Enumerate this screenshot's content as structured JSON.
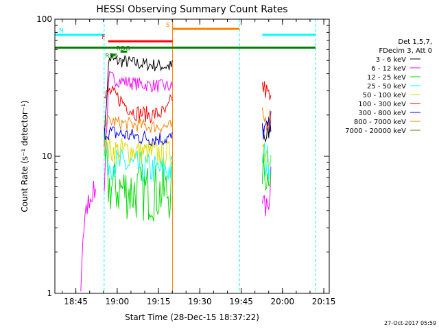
{
  "chart_data": {
    "type": "line",
    "title": "HESSI Observing Summary Count Rates",
    "xlabel": "Start Time (28-Dec-15 18:37:22)",
    "ylabel": "Count Rate (s⁻¹ detector⁻¹)",
    "ylim": [
      1,
      100
    ],
    "yscale": "log",
    "xlim": [
      18.623,
      20.283
    ],
    "x_ticks": [
      "18:45",
      "19:00",
      "19:15",
      "19:30",
      "19:45",
      "20:00",
      "20:15"
    ],
    "y_ticks": [
      "1",
      "10",
      "100"
    ],
    "legend": {
      "placement": "right",
      "header": [
        "Det 1,5,7,",
        "FDecim 3, Att 0"
      ],
      "entries": [
        {
          "label": "3 - 6 keV",
          "color": "#000000"
        },
        {
          "label": "6 - 12 keV",
          "color": "#ff00ff"
        },
        {
          "label": "12 - 25 keV",
          "color": "#00dd00"
        },
        {
          "label": "25 - 50 keV",
          "color": "#00ffff"
        },
        {
          "label": "50 - 100 keV",
          "color": "#dddd00"
        },
        {
          "label": "100 - 300 keV",
          "color": "#ff0000"
        },
        {
          "label": "300 - 800 keV",
          "color": "#0000ff"
        },
        {
          "label": "800 - 7000 keV",
          "color": "#ff8000"
        },
        {
          "label": "7000 - 20000 keV",
          "color": "#8b6914"
        }
      ]
    },
    "series": [
      {
        "name": "3 - 6 keV",
        "color": "#000000",
        "segments": [
          {
            "x": [
              18.922,
              18.95,
              18.98,
              19.05,
              19.15,
              19.25,
              19.33,
              19.333
            ],
            "y": [
              13,
              52,
              50,
              49,
              47,
              46,
              45,
              46
            ],
            "noise": 0.05
          },
          {
            "x": [
              19.878,
              19.905,
              19.93
            ],
            "y": [
              15,
              12,
              18
            ],
            "noise": 0.15
          }
        ]
      },
      {
        "name": "6 - 12 keV",
        "color": "#ff00ff",
        "segments": [
          {
            "x": [
              18.78,
              18.79,
              18.82,
              18.85,
              18.87
            ],
            "y": [
              1,
              2.5,
              4.5,
              5.5,
              5.5
            ],
            "noise": 0.08
          },
          {
            "x": [
              18.922,
              18.95,
              19.0,
              19.1,
              19.2,
              19.333
            ],
            "y": [
              6,
              38,
              36,
              34,
              33,
              32
            ],
            "noise": 0.05
          },
          {
            "x": [
              19.878,
              19.9,
              19.93
            ],
            "y": [
              5,
              4,
              6
            ],
            "noise": 0.15
          }
        ]
      },
      {
        "name": "12 - 25 keV",
        "color": "#00dd00",
        "segments": [
          {
            "x": [
              18.922,
              18.95,
              19.1,
              19.2,
              19.333
            ],
            "y": [
              9,
              6,
              5.5,
              5.5,
              5.5
            ],
            "noise": 0.22
          },
          {
            "x": [
              19.878,
              19.91,
              19.93
            ],
            "y": [
              8,
              7,
              9
            ],
            "noise": 0.15
          }
        ]
      },
      {
        "name": "25 - 50 keV",
        "color": "#00ffff",
        "segments": [
          {
            "x": [
              18.922,
              18.95,
              19.1,
              19.2,
              19.333
            ],
            "y": [
              11,
              9,
              8.5,
              8,
              8
            ],
            "noise": 0.12
          },
          {
            "x": [
              19.878,
              19.91,
              19.93
            ],
            "y": [
              10,
              9,
              11
            ],
            "noise": 0.15
          }
        ]
      },
      {
        "name": "50 - 100 keV",
        "color": "#dddd00",
        "segments": [
          {
            "x": [
              18.922,
              18.95,
              19.1,
              19.2,
              19.333
            ],
            "y": [
              13,
              11,
              11,
              10.5,
              10.5
            ],
            "noise": 0.1
          },
          {
            "x": [
              19.878,
              19.91,
              19.93
            ],
            "y": [
              12,
              11,
              13
            ],
            "noise": 0.15
          }
        ]
      },
      {
        "name": "100 - 300 keV",
        "color": "#ff0000",
        "segments": [
          {
            "x": [
              18.922,
              18.95,
              19.0,
              19.1,
              19.2,
              19.3,
              19.333
            ],
            "y": [
              26,
              30,
              27,
              21,
              20,
              21,
              27
            ],
            "noise": 0.06
          },
          {
            "x": [
              19.878,
              19.9,
              19.93
            ],
            "y": [
              32,
              30,
              25
            ],
            "noise": 0.08
          }
        ]
      },
      {
        "name": "300 - 800 keV",
        "color": "#0000ff",
        "segments": [
          {
            "x": [
              18.922,
              18.95,
              19.1,
              19.2,
              19.333
            ],
            "y": [
              15,
              15,
              14,
              13.5,
              13.5
            ],
            "noise": 0.06
          },
          {
            "x": [
              19.878,
              19.91,
              19.93
            ],
            "y": [
              16,
              15,
              17
            ],
            "noise": 0.1
          }
        ]
      },
      {
        "name": "800 - 7000 keV",
        "color": "#ff8000",
        "segments": [
          {
            "x": [
              18.922,
              18.95,
              19.1,
              19.2,
              19.333
            ],
            "y": [
              18,
              18,
              17,
              16.5,
              16.5
            ],
            "noise": 0.05
          },
          {
            "x": [
              19.878,
              19.91,
              19.93
            ],
            "y": [
              19,
              18,
              20
            ],
            "noise": 0.08
          }
        ]
      }
    ],
    "flag_bars": [
      {
        "label": "N",
        "color": "#00ffff",
        "segments": [
          [
            18.623,
            18.921
          ],
          [
            19.878,
            20.2
          ]
        ],
        "y": 77
      },
      {
        "label": "S",
        "color": "#ff8000",
        "segments": [
          [
            19.335,
            19.74
          ]
        ],
        "y": 85
      },
      {
        "label": "F",
        "color": "#ff0000",
        "segments": [
          [
            18.945,
            19.335
          ]
        ],
        "y": 69
      },
      {
        "label": "",
        "color": "#008000",
        "segments": [
          [
            18.623,
            20.2
          ]
        ],
        "y": 62
      },
      {
        "label": "RD6",
        "color": "#008000",
        "segments": [
          [
            18.96,
            18.99
          ]
        ],
        "y": 55
      },
      {
        "label": "RDO",
        "color": "#008000",
        "segments": [
          [
            19.02,
            19.06
          ]
        ],
        "y": 58
      }
    ],
    "vlines": [
      {
        "x": 18.921,
        "color": "#00ffff",
        "dashed": true
      },
      {
        "x": 19.74,
        "color": "#00ffff",
        "dashed": true
      },
      {
        "x": 20.2,
        "color": "#00ffff",
        "dashed": true
      },
      {
        "x": 19.335,
        "color": "#ff8000",
        "dashed": false
      },
      {
        "x": 18.623,
        "color": "#00ffff",
        "dashed": false
      }
    ]
  },
  "footer": {
    "timestamp": "27-Oct-2017 05:59"
  }
}
